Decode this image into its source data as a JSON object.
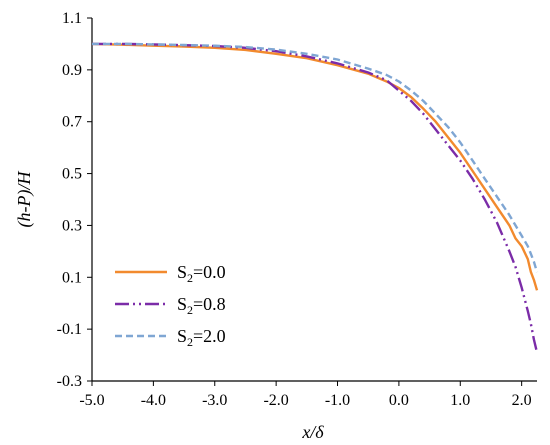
{
  "chart_data": {
    "type": "line",
    "xlabel": "x/δ",
    "ylabel": "(h-P)/H",
    "xlim": [
      -5.0,
      2.25
    ],
    "ylim": [
      -0.3,
      1.1
    ],
    "x_ticks": [
      "-5.0",
      "-4.0",
      "-3.0",
      "-2.0",
      "-1.0",
      "0.0",
      "1.0",
      "2.0"
    ],
    "y_ticks": [
      "-0.3",
      "-0.1",
      "0.1",
      "0.3",
      "0.5",
      "0.7",
      "0.9",
      "1.1"
    ],
    "grid": false,
    "legend_position": "bottom-left",
    "series": [
      {
        "name": "S2=0.0",
        "name_base": "S",
        "name_sub": "2",
        "name_rest": "=0.0",
        "color": "#F28A2E",
        "dash": "solid",
        "x": [
          -5.0,
          -4.5,
          -4.0,
          -3.5,
          -3.0,
          -2.5,
          -2.0,
          -1.5,
          -1.0,
          -0.5,
          -0.2,
          0.0,
          0.2,
          0.4,
          0.6,
          0.8,
          1.0,
          1.2,
          1.4,
          1.6,
          1.8,
          1.9,
          2.0,
          2.1,
          2.15,
          2.2,
          2.25
        ],
        "y": [
          1.0,
          0.997,
          0.993,
          0.99,
          0.985,
          0.977,
          0.962,
          0.945,
          0.918,
          0.885,
          0.855,
          0.83,
          0.795,
          0.75,
          0.7,
          0.64,
          0.58,
          0.51,
          0.44,
          0.37,
          0.3,
          0.25,
          0.22,
          0.17,
          0.12,
          0.09,
          0.05
        ]
      },
      {
        "name": "S2=0.8",
        "name_base": "S",
        "name_sub": "2",
        "name_rest": "=0.8",
        "color": "#7B2CA8",
        "dash": "dashdotdot",
        "x": [
          -5.0,
          -4.5,
          -4.0,
          -3.5,
          -3.0,
          -2.5,
          -2.0,
          -1.5,
          -1.0,
          -0.5,
          -0.2,
          0.0,
          0.2,
          0.4,
          0.6,
          0.8,
          1.0,
          1.2,
          1.4,
          1.6,
          1.8,
          1.9,
          2.0,
          2.1,
          2.15,
          2.2,
          2.25
        ],
        "y": [
          1.0,
          1.0,
          0.998,
          0.995,
          0.992,
          0.985,
          0.972,
          0.952,
          0.925,
          0.89,
          0.86,
          0.82,
          0.78,
          0.73,
          0.67,
          0.61,
          0.55,
          0.48,
          0.4,
          0.31,
          0.2,
          0.14,
          0.06,
          -0.03,
          -0.08,
          -0.14,
          -0.19
        ]
      },
      {
        "name": "S2=2.0",
        "name_base": "S",
        "name_sub": "2",
        "name_rest": "=2.0",
        "color": "#7FA6D3",
        "dash": "dashed",
        "x": [
          -5.0,
          -4.5,
          -4.0,
          -3.5,
          -3.0,
          -2.5,
          -2.0,
          -1.5,
          -1.0,
          -0.5,
          -0.2,
          0.0,
          0.2,
          0.4,
          0.6,
          0.8,
          1.0,
          1.2,
          1.4,
          1.6,
          1.8,
          1.9,
          2.0,
          2.1,
          2.15,
          2.2,
          2.25
        ],
        "y": [
          1.0,
          1.0,
          0.998,
          0.996,
          0.993,
          0.988,
          0.978,
          0.962,
          0.94,
          0.905,
          0.88,
          0.855,
          0.82,
          0.78,
          0.73,
          0.68,
          0.62,
          0.55,
          0.48,
          0.41,
          0.34,
          0.3,
          0.26,
          0.22,
          0.19,
          0.16,
          0.12
        ]
      }
    ]
  }
}
